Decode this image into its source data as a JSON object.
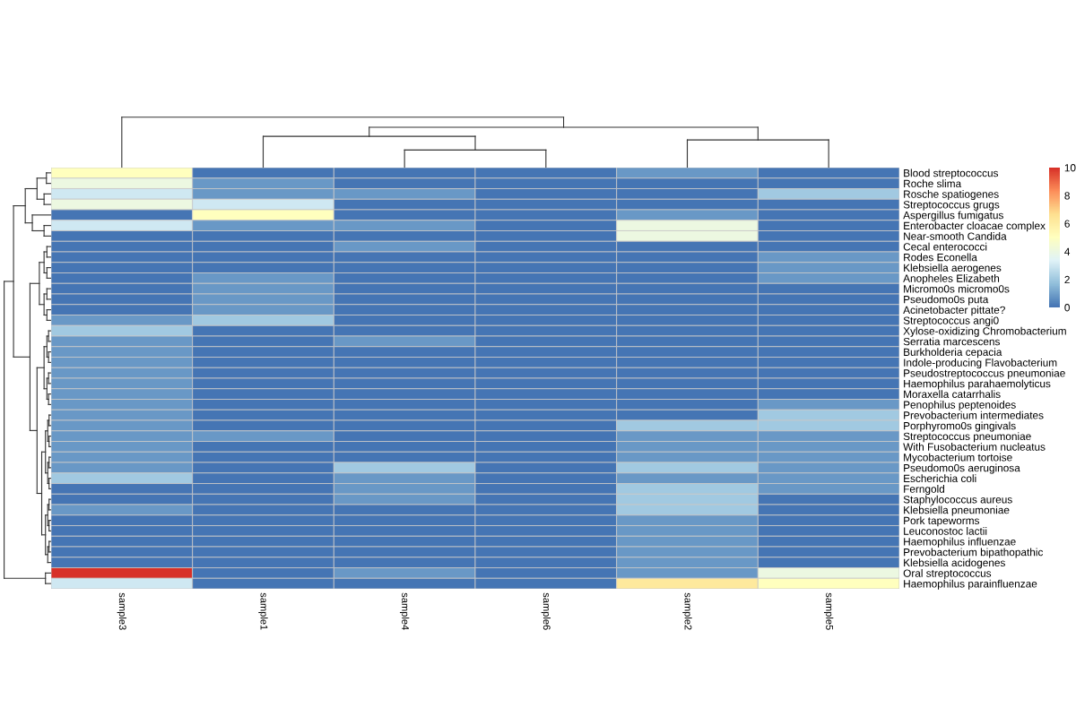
{
  "chart_data": {
    "type": "heatmap",
    "categories": [
      "sample3",
      "sample1",
      "sample4",
      "sample6",
      "sample2",
      "sample5"
    ],
    "y_categories": [
      "Blood streptococcus",
      "Roche slima",
      "Rosche spatiogenes",
      "Streptococcus grugs",
      "Aspergillus fumigatus",
      "Enterobacter cloacae complex",
      "Near-smooth Candida",
      "Cecal enterococci",
      "Rodes Econella",
      "Klebsiella aerogenes",
      "Anopheles Elizabeth",
      "Micromo0s micromo0s",
      "Pseudomo0s puta",
      "Acinetobacter pittate?",
      "Streptococcus angi0",
      "Xylose-oxidizing Chromobacterium",
      "Serratia marcescens",
      "Burkholderia cepacia",
      "Indole-producing Flavobacterium",
      "Pseudostreptococcus pneumoniae",
      "Haemophilus parahaemolyticus",
      "Moraxella catarrhalis",
      "Penophilus peptenoides",
      "Prevobacterium intermediates",
      "Porphyromo0s gingivals",
      "Streptococcus pneumoniae",
      "With Fusobacterium nucleatus",
      "Mycobacterium tortoise",
      "Pseudomo0s aeruginosa",
      "Escherichia coli",
      "Ferngold",
      "Staphylococcus aureus",
      "Klebsiella pneumoniae",
      "Pork tapeworms",
      "Leuconostoc lactii",
      "Haemophilus influenzae",
      "Prevobacterium bipathopathic",
      "Klebsiella acidogenes",
      "Oral streptococcus",
      "Haemophilus parainfluenzae"
    ],
    "cells": [
      [
        5,
        0,
        0,
        0,
        0.8,
        0
      ],
      [
        4,
        0.8,
        0,
        0,
        0,
        0
      ],
      [
        3,
        0.8,
        0.8,
        0,
        0,
        2
      ],
      [
        4,
        3,
        0,
        0,
        0,
        0
      ],
      [
        0,
        5,
        0,
        0,
        0.8,
        0
      ],
      [
        3,
        0.8,
        0.8,
        0,
        4,
        0
      ],
      [
        0,
        0,
        0,
        0,
        4,
        0
      ],
      [
        0,
        0,
        0.8,
        0,
        0,
        0
      ],
      [
        0,
        0,
        0,
        0,
        0,
        0.8
      ],
      [
        0,
        0,
        0,
        0,
        0,
        0.8
      ],
      [
        0,
        0.8,
        0,
        0,
        0,
        0.8
      ],
      [
        0,
        0.8,
        0,
        0,
        0,
        0
      ],
      [
        0,
        0.8,
        0,
        0,
        0,
        0
      ],
      [
        0,
        0.8,
        0,
        0,
        0,
        0
      ],
      [
        0.8,
        2,
        0,
        0,
        0,
        0
      ],
      [
        2,
        0,
        0,
        0,
        0,
        0
      ],
      [
        0.8,
        0,
        0.8,
        0,
        0,
        0
      ],
      [
        0.8,
        0,
        0,
        0,
        0,
        0
      ],
      [
        0.8,
        0,
        0,
        0,
        0,
        0
      ],
      [
        0.8,
        0,
        0,
        0,
        0,
        0
      ],
      [
        0.8,
        0,
        0,
        0,
        0,
        0
      ],
      [
        0.8,
        0,
        0,
        0,
        0,
        0
      ],
      [
        0.8,
        0,
        0,
        0,
        0,
        0.8
      ],
      [
        0.8,
        0,
        0,
        0,
        0,
        2
      ],
      [
        0.8,
        0,
        0,
        0,
        2,
        2
      ],
      [
        0.8,
        0.8,
        0,
        0,
        0.8,
        0.8
      ],
      [
        0.8,
        0,
        0,
        0,
        0.8,
        0.8
      ],
      [
        0.8,
        0,
        0,
        0,
        0.8,
        0.8
      ],
      [
        0.8,
        0,
        2,
        0,
        2,
        0.8
      ],
      [
        2,
        0,
        0.8,
        0,
        0.8,
        0.8
      ],
      [
        0,
        0,
        0.8,
        0,
        2,
        0.8
      ],
      [
        0,
        0,
        0.8,
        0,
        2,
        0
      ],
      [
        0.8,
        0,
        0,
        0,
        2,
        0
      ],
      [
        0,
        0,
        0,
        0,
        0.8,
        0
      ],
      [
        0,
        0,
        0,
        0,
        0.8,
        0
      ],
      [
        0,
        0,
        0,
        0,
        0.8,
        0
      ],
      [
        0,
        0,
        0,
        0,
        0.8,
        0
      ],
      [
        0,
        0,
        0,
        0,
        0.8,
        0
      ],
      [
        10,
        0,
        0.8,
        0,
        0.8,
        4
      ],
      [
        3,
        0,
        0,
        0,
        6.2,
        5
      ]
    ],
    "clim": [
      0,
      10
    ],
    "cticks": [
      0,
      2,
      4,
      6,
      8,
      10
    ]
  }
}
